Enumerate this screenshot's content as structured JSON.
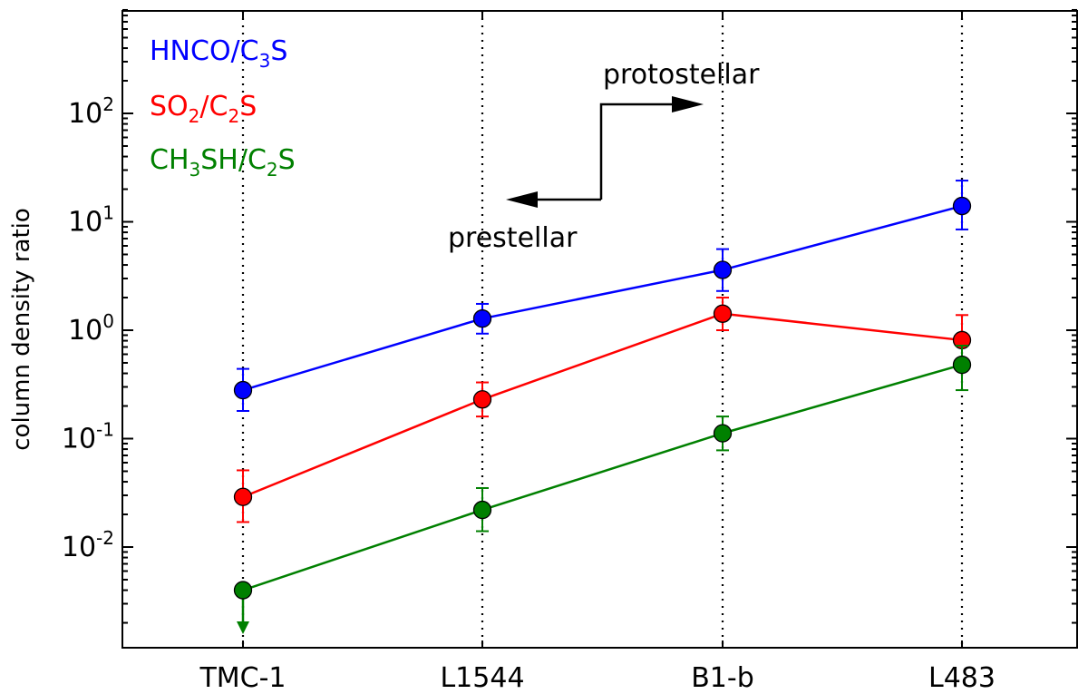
{
  "chart_data": {
    "type": "line",
    "title": "",
    "xlabel": "",
    "ylabel": "column density ratio",
    "yscale": "log",
    "ylim": [
      0.0013,
      900
    ],
    "categories": [
      "TMC-1",
      "L1544",
      "B1-b",
      "L483"
    ],
    "y_ticks": [
      {
        "value": 0.01,
        "base": "10",
        "exp": "-2"
      },
      {
        "value": 0.1,
        "base": "10",
        "exp": "-1"
      },
      {
        "value": 1,
        "base": "10",
        "exp": "0"
      },
      {
        "value": 10,
        "base": "10",
        "exp": "1"
      },
      {
        "value": 100,
        "base": "10",
        "exp": "2"
      }
    ],
    "grid": "vertical dotted lines at each category",
    "legend_position": "top-left",
    "series": [
      {
        "name": "HNCO/C3S",
        "label_parts": [
          {
            "t": "HNCO/C"
          },
          {
            "t": "3",
            "sub": true
          },
          {
            "t": "S"
          }
        ],
        "color": "#0000ff",
        "values": [
          0.28,
          1.28,
          3.6,
          14
        ],
        "err_low": [
          0.18,
          0.93,
          2.3,
          8.5
        ],
        "err_high": [
          0.44,
          1.75,
          5.6,
          24
        ],
        "upper_limit": [
          false,
          false,
          false,
          false
        ]
      },
      {
        "name": "SO2/C2S",
        "label_parts": [
          {
            "t": "SO"
          },
          {
            "t": "2",
            "sub": true
          },
          {
            "t": "/C"
          },
          {
            "t": "2",
            "sub": true
          },
          {
            "t": "S"
          }
        ],
        "color": "#ff0000",
        "values": [
          0.029,
          0.23,
          1.42,
          0.81
        ],
        "err_low": [
          0.017,
          0.16,
          1.0,
          0.5
        ],
        "err_high": [
          0.051,
          0.33,
          2.0,
          1.38
        ],
        "upper_limit": [
          false,
          false,
          false,
          false
        ]
      },
      {
        "name": "CH3SH/C2S",
        "label_parts": [
          {
            "t": "CH"
          },
          {
            "t": "3",
            "sub": true
          },
          {
            "t": "SH/C"
          },
          {
            "t": "2",
            "sub": true
          },
          {
            "t": "S"
          }
        ],
        "color": "#008000",
        "values": [
          0.004,
          0.022,
          0.112,
          0.48
        ],
        "err_low": [
          0.0017,
          0.014,
          0.078,
          0.28
        ],
        "err_high": [
          0.004,
          0.035,
          0.16,
          0.72
        ],
        "upper_limit": [
          true,
          false,
          false,
          false
        ]
      }
    ],
    "annotations": [
      {
        "text": "protostellar",
        "direction": "right"
      },
      {
        "text": "prestellar",
        "direction": "left"
      }
    ]
  }
}
